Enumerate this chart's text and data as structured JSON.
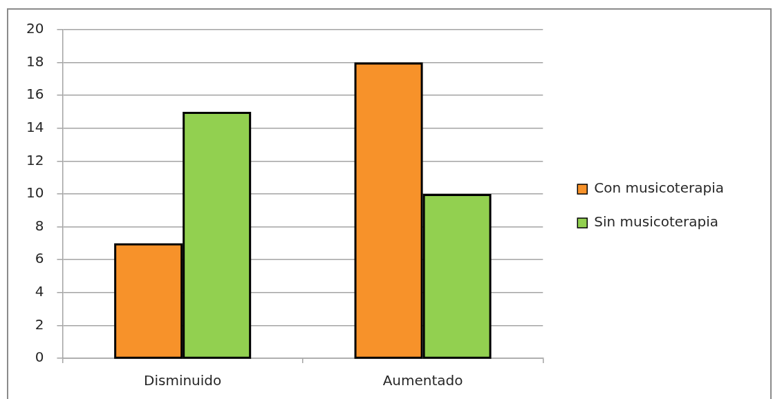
{
  "chart_data": {
    "type": "bar",
    "categories": [
      "Disminuido",
      "Aumentado"
    ],
    "series": [
      {
        "name": "Con musicoterapia",
        "color": "#f7922a",
        "values": [
          7,
          18
        ]
      },
      {
        "name": "Sin musicoterapia",
        "color": "#92d050",
        "values": [
          15,
          10
        ]
      }
    ],
    "ylim": [
      0,
      20
    ],
    "yticks": [
      0,
      2,
      4,
      6,
      8,
      10,
      12,
      14,
      16,
      18,
      20
    ],
    "grid": "y",
    "legend": "right"
  }
}
